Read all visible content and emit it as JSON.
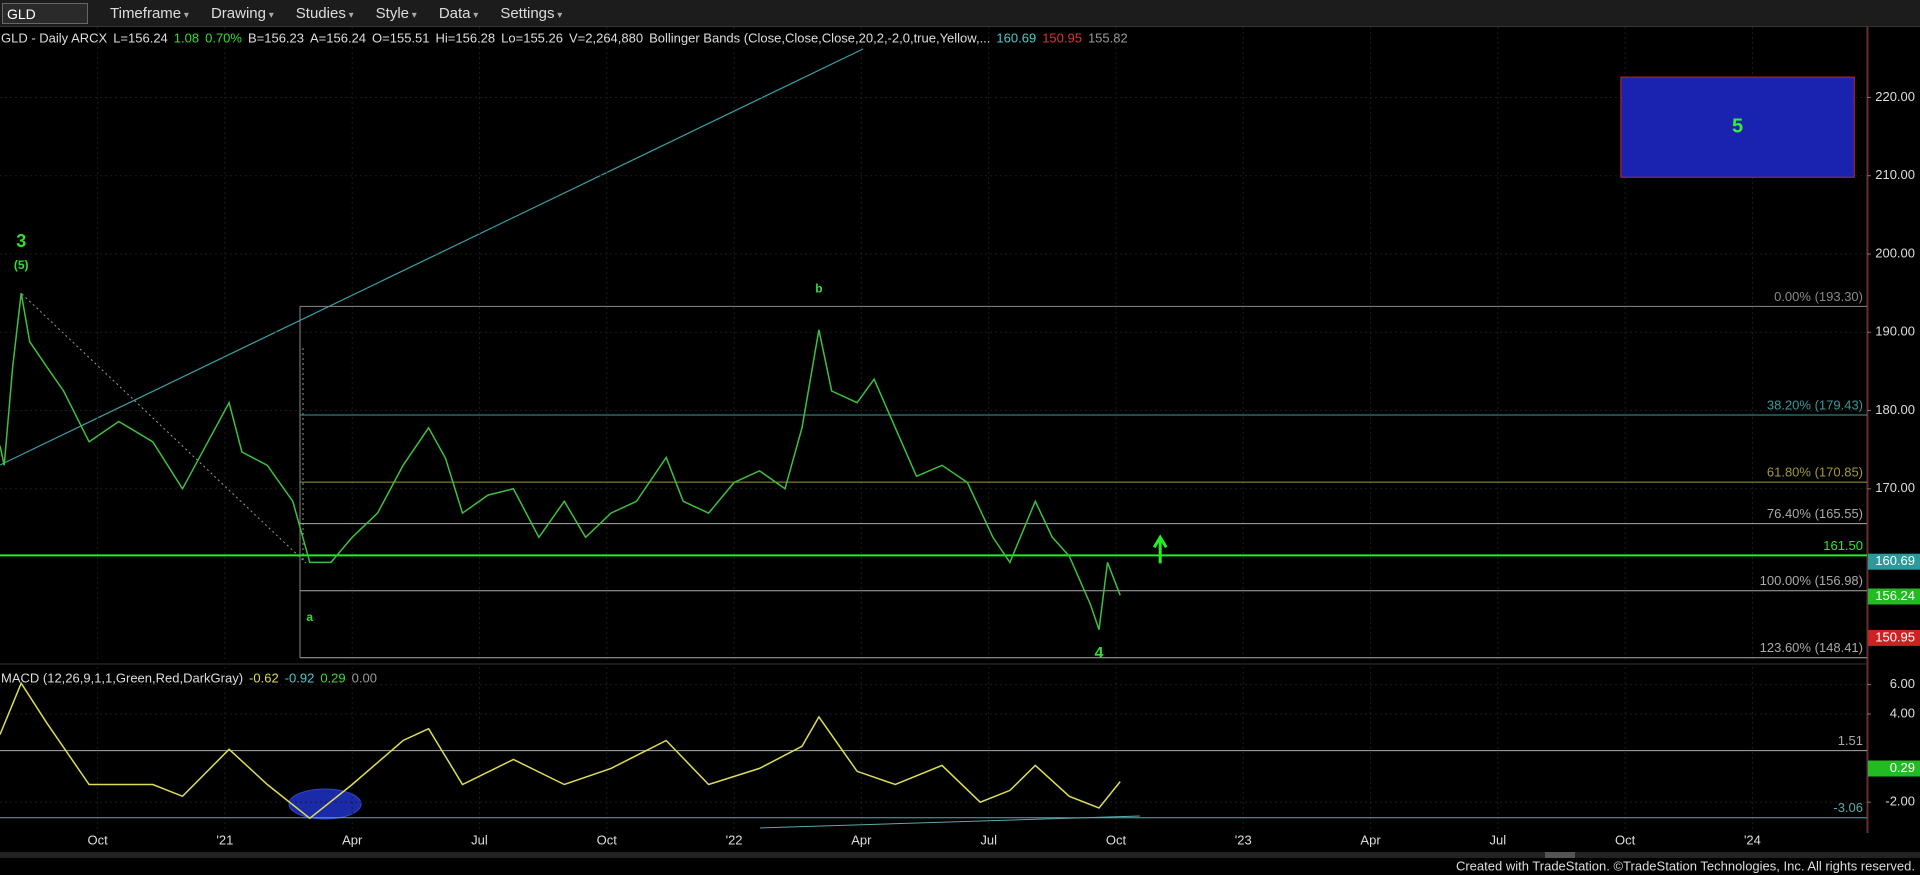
{
  "toolbar": {
    "symbol": "GLD",
    "items": [
      "Timeframe",
      "Drawing",
      "Studies",
      "Style",
      "Data",
      "Settings"
    ]
  },
  "footer": "Created with TradeStation. ©TradeStation Technologies, Inc. All rights reserved.",
  "chart_data": [
    {
      "type": "line",
      "header": [
        {
          "text": "GLD - Daily  ARCX",
          "color": "#dddddd"
        },
        {
          "text": "L=156.24",
          "color": "#dddddd"
        },
        {
          "text": "1.08",
          "color": "#33dd33"
        },
        {
          "text": "0.70%",
          "color": "#33dd33"
        },
        {
          "text": "B=156.23",
          "color": "#dddddd"
        },
        {
          "text": "A=156.24",
          "color": "#dddddd"
        },
        {
          "text": "O=155.51",
          "color": "#dddddd"
        },
        {
          "text": "Hi=156.28",
          "color": "#dddddd"
        },
        {
          "text": "Lo=155.26",
          "color": "#dddddd"
        },
        {
          "text": "V=2,264,880",
          "color": "#dddddd"
        },
        {
          "text": "Bollinger Bands (Close,Close,Close,20,2,-2,0,true,Yellow,...",
          "color": "#dddddd"
        },
        {
          "text": "160.69",
          "color": "#44cccc"
        },
        {
          "text": "150.95",
          "color": "#dd3333"
        },
        {
          "text": "155.82",
          "color": "#999999"
        }
      ],
      "xlim": [
        -2.3,
        41.7
      ],
      "ylim": [
        148,
        229
      ],
      "yticks": [
        {
          "value": 170,
          "label": "170.00"
        },
        {
          "value": 180,
          "label": "180.00"
        },
        {
          "value": 190,
          "label": "190.00"
        },
        {
          "value": 200,
          "label": "200.00"
        },
        {
          "value": 210,
          "label": "210.00"
        },
        {
          "value": 220,
          "label": "220.00"
        }
      ],
      "grid": true,
      "series": [
        {
          "name": "GLD",
          "color": "#3fbf3f",
          "x": [
            -2.3,
            -2.2,
            -2.0,
            -1.8,
            -1.6,
            -1.2,
            -0.8,
            -0.2,
            0.5,
            1.3,
            2.0,
            2.6,
            3.1,
            3.4,
            4.0,
            4.6,
            5.0,
            5.5,
            6.0,
            6.6,
            7.2,
            7.8,
            8.2,
            8.6,
            9.2,
            9.8,
            10.4,
            11.0,
            11.5,
            12.1,
            12.7,
            13.4,
            13.8,
            14.4,
            15.0,
            15.6,
            16.2,
            16.6,
            17.0,
            17.3,
            17.9,
            18.3,
            18.8,
            19.3,
            19.9,
            20.5,
            21.1,
            21.5,
            22.1,
            22.5,
            22.9,
            23.4,
            23.6,
            23.8,
            24.1
          ],
          "values": [
            175.5,
            173,
            185.6,
            195,
            188.8,
            185.6,
            182.5,
            176,
            178.6,
            176,
            170,
            176,
            181,
            174.7,
            173,
            168.4,
            160.6,
            160.6,
            163.8,
            166.9,
            173,
            177.8,
            173.9,
            166.9,
            169.2,
            170,
            163.8,
            168.4,
            163.8,
            166.9,
            168.4,
            174,
            168.4,
            166.9,
            170.8,
            172.3,
            170,
            177.8,
            190.3,
            182.5,
            181,
            184,
            177.8,
            171.6,
            173,
            170.8,
            163.8,
            160.6,
            168.4,
            163.8,
            161.4,
            155.2,
            152,
            160.6,
            156.4
          ]
        }
      ],
      "levels": [
        {
          "label": "0.00% (193.30)",
          "value": 193.3,
          "color": "#888888"
        },
        {
          "label": "38.20% (179.43)",
          "value": 179.43,
          "color": "#3a9a9a"
        },
        {
          "label": "61.80% (170.85)",
          "value": 170.85,
          "color": "#a09a3a"
        },
        {
          "label": "76.40% (165.55)",
          "value": 165.55,
          "color": "#aaaaaa"
        },
        {
          "label": "100.00% (156.98)",
          "value": 156.98,
          "color": "#aaaaaa"
        },
        {
          "label": "123.60% (148.41)",
          "value": 148.41,
          "color": "#aaaaaa"
        },
        {
          "label": "161.50",
          "value": 161.5,
          "color": "#22ee22"
        }
      ],
      "markers": [
        {
          "value": 160.69,
          "color": "#2a9a9a"
        },
        {
          "value": 156.24,
          "color": "#22bb22"
        },
        {
          "value": 150.95,
          "color": "#cc2222"
        }
      ],
      "annotations": [
        {
          "text": "3",
          "x": -1.8,
          "y": 201.5,
          "size": 18
        },
        {
          "text": "(5)",
          "x": -1.8,
          "y": 198.5,
          "size": 12
        },
        {
          "text": "b",
          "x": 17.0,
          "y": 195.5,
          "size": 12
        },
        {
          "text": "a",
          "x": 5.0,
          "y": 153.5,
          "size": 12
        },
        {
          "text": "4",
          "x": 23.6,
          "y": 148.9,
          "size": 16
        }
      ],
      "box": {
        "text": "5",
        "x": [
          35.9,
          41.4
        ],
        "y": [
          209.8,
          222.6
        ]
      }
    },
    {
      "type": "line",
      "header": [
        {
          "text": "MACD (12,26,9,1,1,Green,Red,DarkGray)",
          "color": "#dddddd"
        },
        {
          "text": "-0.62",
          "color": "#dddd55"
        },
        {
          "text": "-0.92",
          "color": "#44cccc"
        },
        {
          "text": "0.29",
          "color": "#33dd33"
        },
        {
          "text": "0.00",
          "color": "#999999"
        }
      ],
      "xlim": [
        -2.3,
        41.7
      ],
      "ylim": [
        -4.1,
        7.2
      ],
      "yticks": [
        {
          "value": -2,
          "label": "-2.00"
        },
        {
          "value": 4,
          "label": "4.00"
        },
        {
          "value": 6,
          "label": "6.00"
        }
      ],
      "xticks": [
        {
          "value": 0,
          "label": "Oct"
        },
        {
          "value": 3,
          "label": "'21"
        },
        {
          "value": 6,
          "label": "Apr"
        },
        {
          "value": 9,
          "label": "Jul"
        },
        {
          "value": 12,
          "label": "Oct"
        },
        {
          "value": 15,
          "label": "'22"
        },
        {
          "value": 18,
          "label": "Apr"
        },
        {
          "value": 21,
          "label": "Jul"
        },
        {
          "value": 24,
          "label": "Oct"
        },
        {
          "value": 27,
          "label": "'23"
        },
        {
          "value": 30,
          "label": "Apr"
        },
        {
          "value": 33,
          "label": "Jul"
        },
        {
          "value": 36,
          "label": "Oct"
        },
        {
          "value": 39,
          "label": "'24"
        }
      ],
      "series": [
        {
          "name": "MACD",
          "color": "#dddd55",
          "x": [
            -2.3,
            -1.8,
            -1.2,
            -0.2,
            1.3,
            2.0,
            3.1,
            4.0,
            5.0,
            6.0,
            7.2,
            7.8,
            8.6,
            9.8,
            11.0,
            12.1,
            13.4,
            14.4,
            15.6,
            16.6,
            17.0,
            17.9,
            18.8,
            19.9,
            20.8,
            21.5,
            22.1,
            22.9,
            23.6,
            24.1
          ],
          "values": [
            2.6,
            6.1,
            3.4,
            -0.8,
            -0.8,
            -1.6,
            1.6,
            -0.8,
            -3.1,
            -0.8,
            2.2,
            3.0,
            -0.8,
            0.9,
            -0.8,
            0.3,
            2.2,
            -0.8,
            0.3,
            1.8,
            3.8,
            0.1,
            -0.8,
            0.5,
            -2.0,
            -1.2,
            0.5,
            -1.6,
            -2.4,
            -0.6
          ]
        }
      ],
      "levels": [
        {
          "label": "1.51",
          "value": 1.51,
          "color": "#aaaaaa"
        },
        {
          "label": "-3.06",
          "value": -3.06,
          "color": "#5aaaaa"
        }
      ],
      "markers": [
        {
          "value": 0.29,
          "color": "#22bb22"
        }
      ]
    }
  ]
}
